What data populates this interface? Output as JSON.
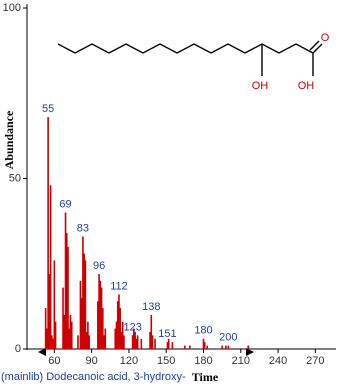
{
  "chart_data": {
    "type": "bar",
    "y_label": "Abundance",
    "x_label": "Time",
    "caption": "(mainlib) Dodecanoic acid, 3-hydroxy-",
    "structure_labels": [
      "OH",
      "OH",
      "O"
    ],
    "x": [
      53,
      54,
      55,
      56,
      57,
      58,
      59,
      60,
      61,
      67,
      68,
      69,
      70,
      71,
      72,
      73,
      74,
      79,
      81,
      82,
      83,
      84,
      85,
      86,
      87,
      88,
      95,
      96,
      97,
      98,
      99,
      100,
      101,
      109,
      110,
      111,
      112,
      113,
      114,
      115,
      116,
      123,
      124,
      125,
      126,
      127,
      130,
      137,
      138,
      139,
      141,
      151,
      152,
      155,
      165,
      169,
      180,
      181,
      183,
      195,
      198,
      200,
      216
    ],
    "values": [
      12,
      6,
      68,
      22,
      48,
      4,
      3,
      26,
      8,
      18,
      10,
      40,
      34,
      30,
      6,
      10,
      8,
      4,
      20,
      15,
      33,
      28,
      26,
      5,
      8,
      4,
      14,
      22,
      20,
      18,
      12,
      4,
      6,
      6,
      8,
      14,
      16,
      12,
      5,
      8,
      4,
      4,
      6,
      5,
      3,
      4,
      3,
      5,
      10,
      4,
      3,
      2,
      3,
      2,
      1,
      1,
      3,
      2,
      1,
      1,
      1,
      1,
      1
    ],
    "labeled_peaks": [
      55,
      69,
      83,
      96,
      112,
      123,
      138,
      151,
      180,
      200
    ],
    "color": "#cc0000",
    "xlim": [
      38,
      285
    ],
    "ylim": [
      0,
      100
    ],
    "xticks": [
      60,
      90,
      120,
      150,
      180,
      210,
      240,
      270
    ],
    "yticks": [
      0,
      50,
      100
    ]
  }
}
